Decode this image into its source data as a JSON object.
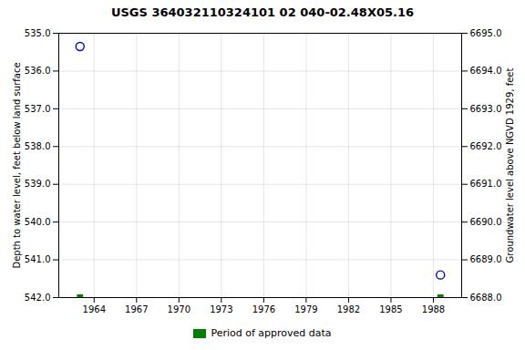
{
  "chart_data": {
    "type": "scatter",
    "title": "USGS 364032110324101 02 040-02.48X05.16",
    "ylabel": "Depth to water level, feet below land surface",
    "y2label": "Groundwater level above NGVD 1929, feet",
    "x": [
      1963.0,
      1988.5
    ],
    "series": [
      {
        "color": "#0000cc",
        "marker": "open_circle",
        "values": [
          535.35,
          541.4
        ]
      },
      {
        "name": "Period of approved data",
        "color": "#008000",
        "marker": "square",
        "values": [
          542.0,
          542.0
        ]
      }
    ],
    "xlim": [
      1961.5,
      1990.0
    ],
    "xticks": [
      1964,
      1967,
      1970,
      1973,
      1976,
      1979,
      1982,
      1985,
      1988
    ],
    "ylim": [
      542.0,
      535.0
    ],
    "yticks": [
      {
        "value": 535.0,
        "label": "535.0"
      },
      {
        "value": 536.0,
        "label": "536.0"
      },
      {
        "value": 537.0,
        "label": "537.0"
      },
      {
        "value": 538.0,
        "label": "538.0"
      },
      {
        "value": 539.0,
        "label": "539.0"
      },
      {
        "value": 540.0,
        "label": "540.0"
      },
      {
        "value": 541.0,
        "label": "541.0"
      },
      {
        "value": 542.0,
        "label": "542.0"
      }
    ],
    "y2lim": [
      6688.0,
      6695.0
    ],
    "y2ticks": [
      {
        "value": 6688.0,
        "label": "6688.0"
      },
      {
        "value": 6689.0,
        "label": "6689.0"
      },
      {
        "value": 6690.0,
        "label": "6690.0"
      },
      {
        "value": 6691.0,
        "label": "6691.0"
      },
      {
        "value": 6692.0,
        "label": "6692.0"
      },
      {
        "value": 6693.0,
        "label": "6693.0"
      },
      {
        "value": 6694.0,
        "label": "6694.0"
      },
      {
        "value": 6695.0,
        "label": "6695.0"
      }
    ],
    "grid": true,
    "legend": "bottom"
  }
}
